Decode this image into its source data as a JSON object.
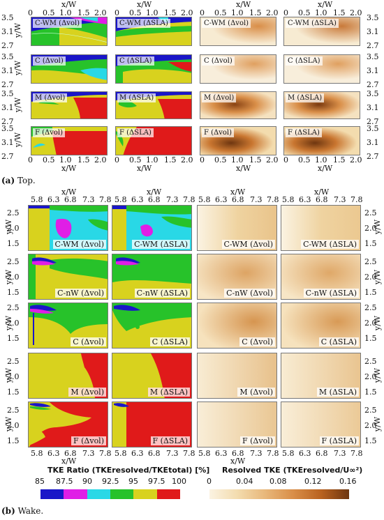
{
  "top": {
    "caption_label": "(a)",
    "caption_text": " Top.",
    "x_axis_title": "x/W",
    "y_axis_title": "y/W",
    "x_ticks": [
      "0",
      "0.5",
      "1.0",
      "1.5",
      "2.0"
    ],
    "y_ticks": [
      "3.5",
      "3.1",
      "2.7"
    ],
    "rows": [
      {
        "ratio_vol": "C-WM (Δvol)",
        "ratio_sla": "C-WM (ΔSLA)",
        "tke_vol": "C-WM (Δvol)",
        "tke_sla": "C-WM (ΔSLA)"
      },
      {
        "ratio_vol": "C (Δvol)",
        "ratio_sla": "C (ΔSLA)",
        "tke_vol": "C (Δvol)",
        "tke_sla": "C (ΔSLA)"
      },
      {
        "ratio_vol": "M (Δvol)",
        "ratio_sla": "M (ΔSLA)",
        "tke_vol": "M (Δvol)",
        "tke_sla": "M (ΔSLA)"
      },
      {
        "ratio_vol": "F (Δvol)",
        "ratio_sla": "F (ΔSLA)",
        "tke_vol": "F (Δvol)",
        "tke_sla": "F (ΔSLA)"
      }
    ]
  },
  "wake": {
    "caption_label": "(b)",
    "caption_text": " Wake.",
    "x_axis_title": "x/W",
    "y_axis_title": "y/W",
    "x_ticks": [
      "5.8",
      "6.3",
      "6.8",
      "7.3",
      "7.8"
    ],
    "y_ticks": [
      "2.5",
      "2.0",
      "1.5"
    ],
    "rows": [
      {
        "vol": "C-WM (Δvol)",
        "sla": "C-WM (ΔSLA)"
      },
      {
        "vol": "C-nW (Δvol)",
        "sla": "C-nW (ΔSLA)"
      },
      {
        "vol": "C (Δvol)",
        "sla": "C (ΔSLA)"
      },
      {
        "vol": "M (Δvol)",
        "sla": "M (ΔSLA)"
      },
      {
        "vol": "F (Δvol)",
        "sla": "F (ΔSLA)"
      }
    ]
  },
  "colorbar_ratio": {
    "title": "TKE Ratio (TKEresolved/TKEtotal) [%]",
    "ticks": [
      "85",
      "87.5",
      "90",
      "92.5",
      "95",
      "97.5",
      "100"
    ],
    "colors": [
      "#1a16c8",
      "#e01ee6",
      "#29d8e6",
      "#27c22a",
      "#d8d21e",
      "#e01a1a"
    ]
  },
  "colorbar_tke": {
    "title": "Resolved TKE (TKEresolved/U∞²)",
    "ticks": [
      "0",
      "0.04",
      "0.08",
      "0.12",
      "0.16"
    ],
    "colors": [
      "#fbf3e2",
      "#f3dcae",
      "#e8b77a",
      "#d98e48",
      "#b9621f",
      "#6e3610"
    ]
  },
  "palette": {
    "blue": "#1a16c8",
    "magenta": "#e01ee6",
    "cyan": "#29d8e6",
    "green": "#27c22a",
    "yellow": "#d8d21e",
    "red": "#e01a1a",
    "tke_base": "#f2dcb2",
    "tke_dark": "#7a3a10"
  }
}
